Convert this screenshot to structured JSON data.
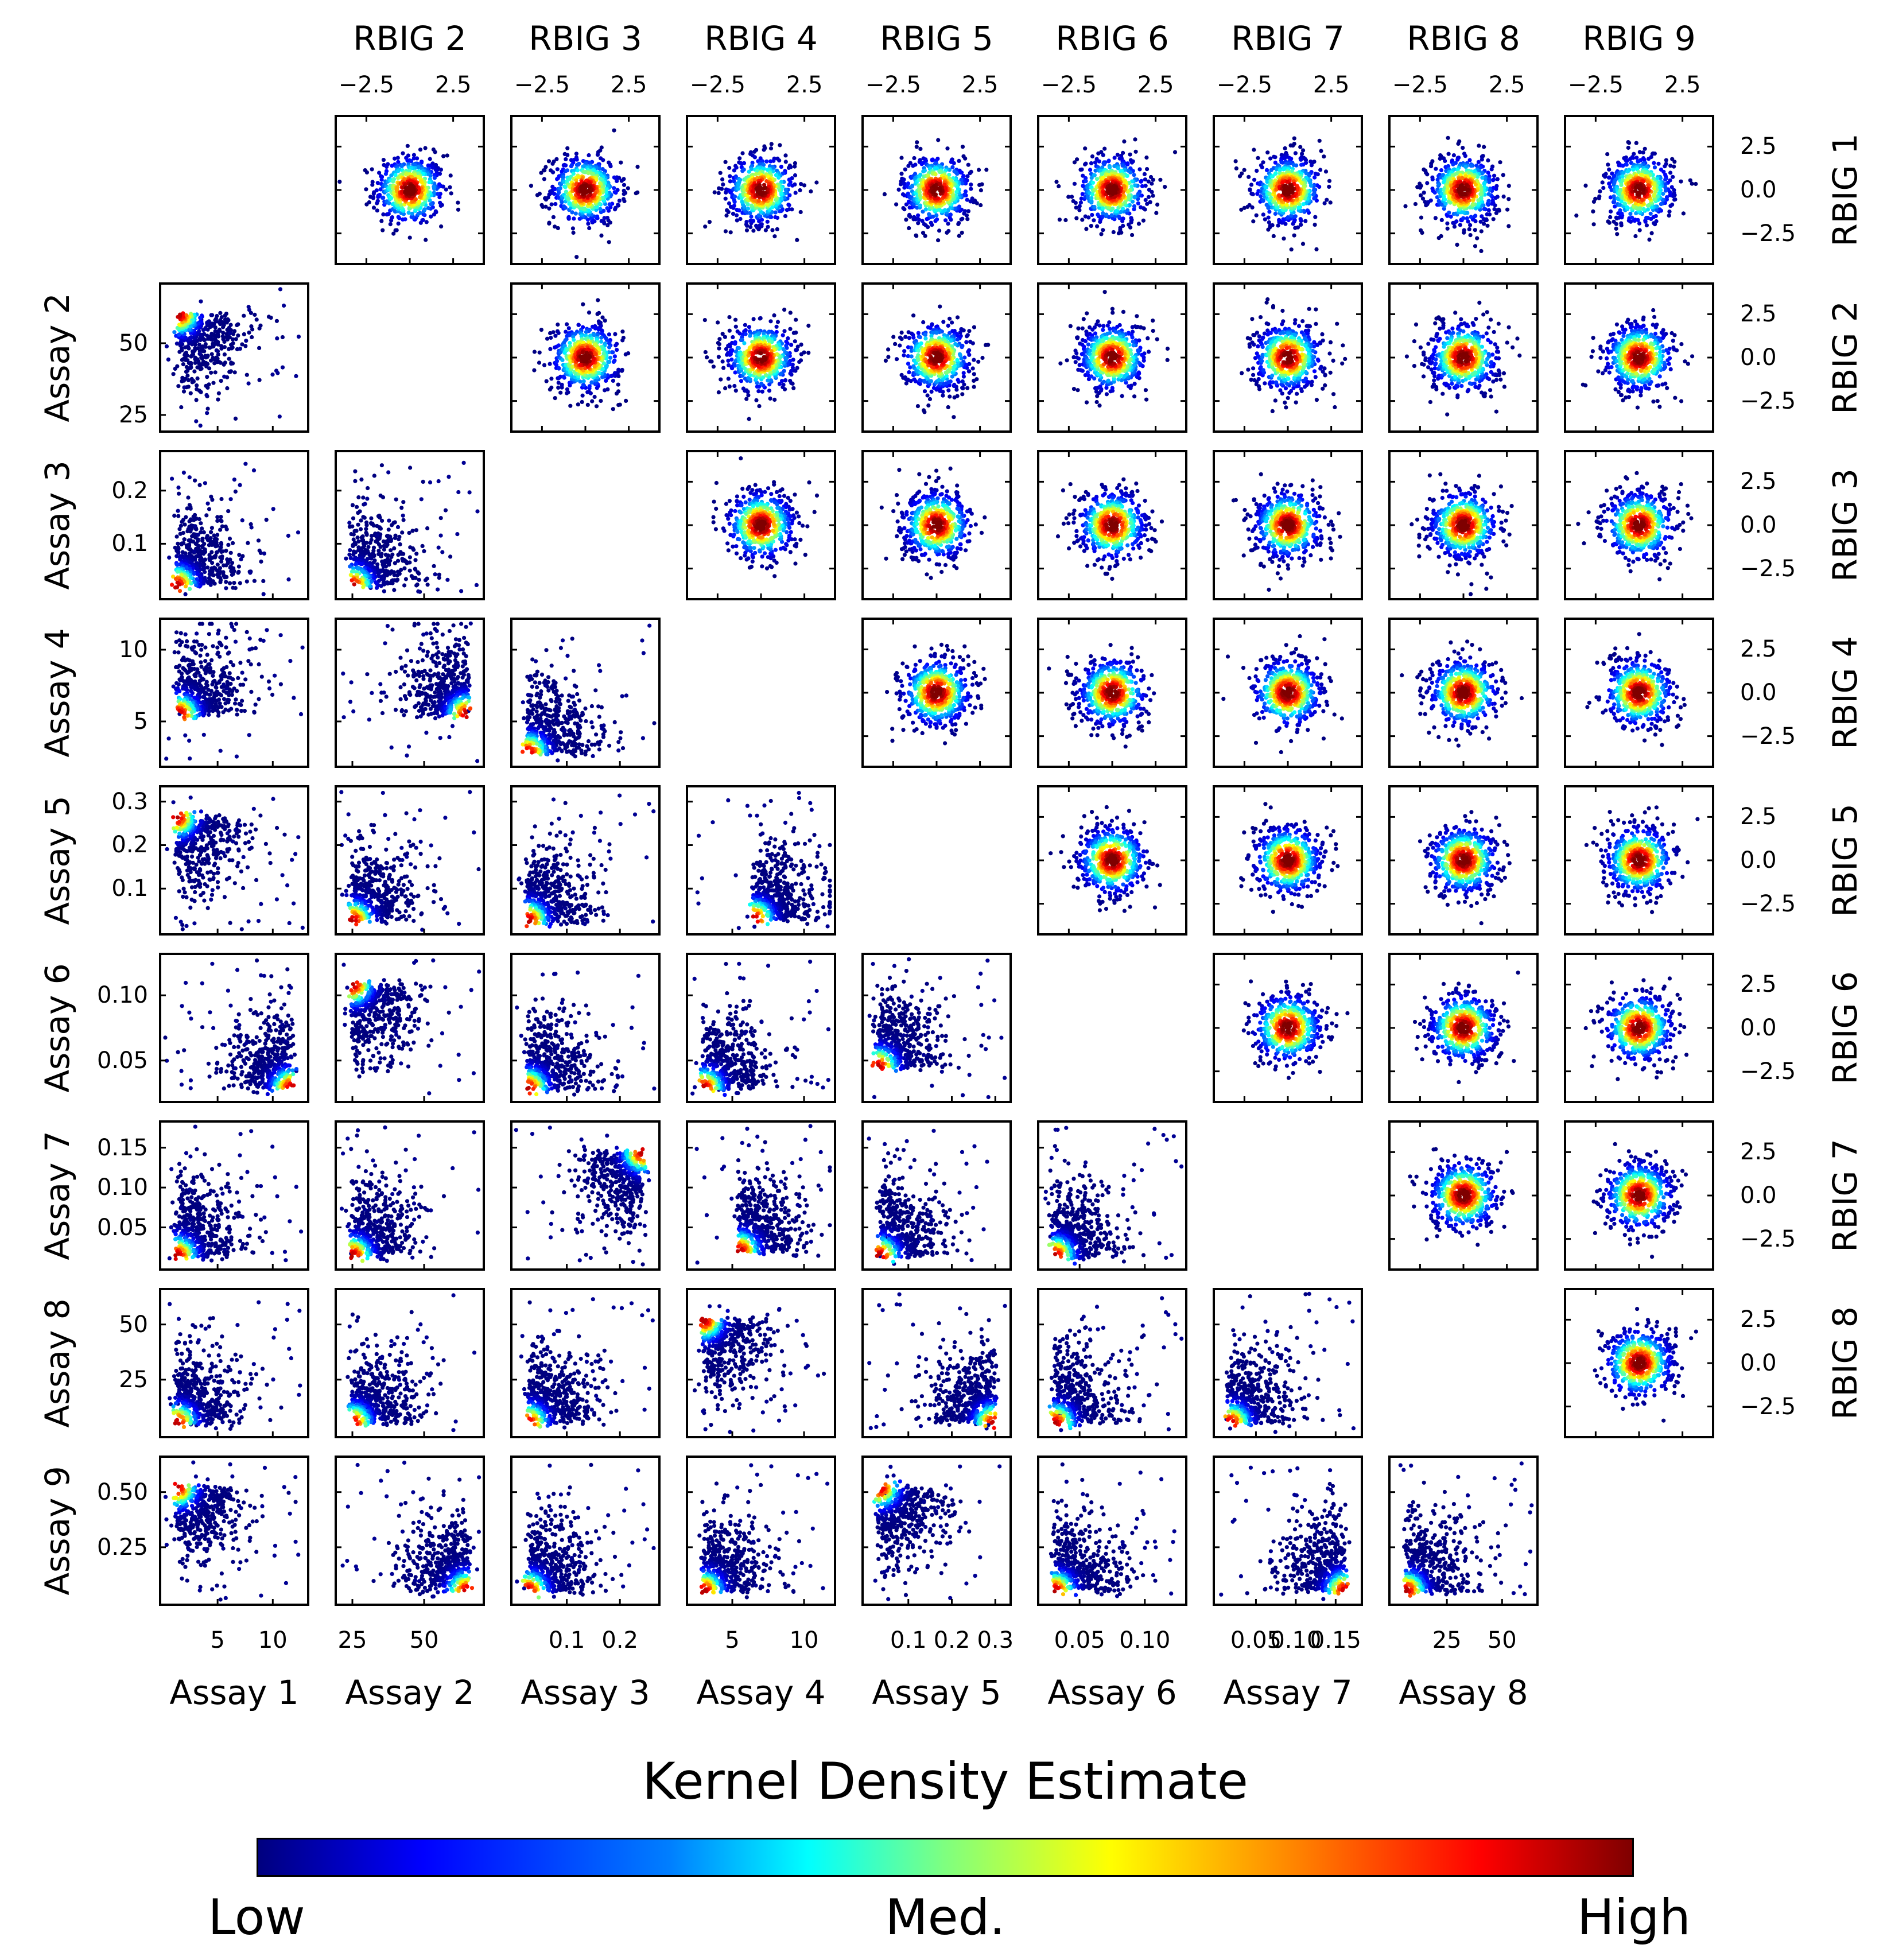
{
  "colormap_colors": [
    "#00007f",
    "#0000ff",
    "#007fff",
    "#00ffff",
    "#7fff7f",
    "#ffff00",
    "#ff7f00",
    "#ff0000",
    "#7f0000"
  ],
  "colorbar": {
    "title": "Kernel Density Estimate",
    "low_label": "Low",
    "mid_label": "Med.",
    "high_label": "High"
  },
  "chart_data": {
    "type": "scatter",
    "description_grid": "9x9 corner pair-plot; lower triangle: Assay i vs Assay j KDE-colored scatter; upper triangle: RBIG i vs RBIG j KDE-colored scatter",
    "lower_x_labels": [
      "Assay 1",
      "Assay 2",
      "Assay 3",
      "Assay 4",
      "Assay 5",
      "Assay 6",
      "Assay 7",
      "Assay 8"
    ],
    "lower_y_labels": [
      "Assay 2",
      "Assay 3",
      "Assay 4",
      "Assay 5",
      "Assay 6",
      "Assay 7",
      "Assay 8",
      "Assay 9"
    ],
    "upper_x_labels": [
      "RBIG 2",
      "RBIG 3",
      "RBIG 4",
      "RBIG 5",
      "RBIG 6",
      "RBIG 7",
      "RBIG 8",
      "RBIG 9"
    ],
    "upper_y_labels": [
      "RBIG 1",
      "RBIG 2",
      "RBIG 3",
      "RBIG 4",
      "RBIG 5",
      "RBIG 6",
      "RBIG 7",
      "RBIG 8"
    ],
    "assay_axes": [
      {
        "name": "Assay 1",
        "range": [
          0,
          13
        ],
        "ticks": [
          5,
          10
        ],
        "tick_labels": [
          "5",
          "10"
        ]
      },
      {
        "name": "Assay 2",
        "range": [
          20,
          70
        ],
        "ticks": [
          25,
          50
        ],
        "tick_labels": [
          "25",
          "50"
        ]
      },
      {
        "name": "Assay 3",
        "range": [
          0,
          0.27
        ],
        "ticks": [
          0.1,
          0.2
        ],
        "tick_labels": [
          "0.1",
          "0.2"
        ]
      },
      {
        "name": "Assay 4",
        "range": [
          2,
          12
        ],
        "ticks": [
          5,
          10
        ],
        "tick_labels": [
          "5",
          "10"
        ]
      },
      {
        "name": "Assay 5",
        "range": [
          0,
          0.33
        ],
        "ticks": [
          0.1,
          0.2,
          0.3
        ],
        "tick_labels": [
          "0.1",
          "0.2",
          "0.3"
        ]
      },
      {
        "name": "Assay 6",
        "range": [
          0.02,
          0.13
        ],
        "ticks": [
          0.05,
          0.1
        ],
        "tick_labels": [
          "0.05",
          "0.10"
        ]
      },
      {
        "name": "Assay 7",
        "range": [
          0,
          0.18
        ],
        "ticks": [
          0.05,
          0.1,
          0.15
        ],
        "tick_labels": [
          "0.05",
          "0.10",
          "0.15"
        ]
      },
      {
        "name": "Assay 8",
        "range": [
          0,
          65
        ],
        "ticks": [
          25,
          50
        ],
        "tick_labels": [
          "25",
          "50"
        ]
      },
      {
        "name": "Assay 9",
        "range": [
          0,
          0.65
        ],
        "ticks": [
          0.25,
          0.5
        ],
        "tick_labels": [
          "0.25",
          "0.50"
        ]
      }
    ],
    "rbig_axis": {
      "range": [
        -4,
        4
      ],
      "ticks": [
        -2.5,
        0.0,
        2.5
      ],
      "x_tick_labels": [
        "−2.5",
        "2.5"
      ],
      "y_tick_labels": [
        "2.5",
        "0.0",
        "−2.5"
      ]
    },
    "upper_panel_shape": "isotropic Gaussian blob centered at (0, 0), peak density at center",
    "lower_panel_modes": [
      {
        "x": "Assay 1",
        "y": "Assay 2",
        "mode": [
          1.5,
          60
        ]
      },
      {
        "x": "Assay 1",
        "y": "Assay 4",
        "mode": [
          1.5,
          5.5
        ]
      },
      {
        "x": "Assay 2",
        "y": "Assay 4",
        "mode": [
          65,
          5.5
        ]
      },
      {
        "x": "Assay 4",
        "y": "Assay 5",
        "mode": [
          6.5,
          0.03
        ]
      },
      {
        "x": "Assay 4",
        "y": "Assay 7",
        "mode": [
          5.5,
          0.02
        ]
      },
      {
        "x": "Assay 5",
        "y": "Assay 6",
        "mode": [
          0.03,
          0.045
        ]
      }
    ]
  }
}
